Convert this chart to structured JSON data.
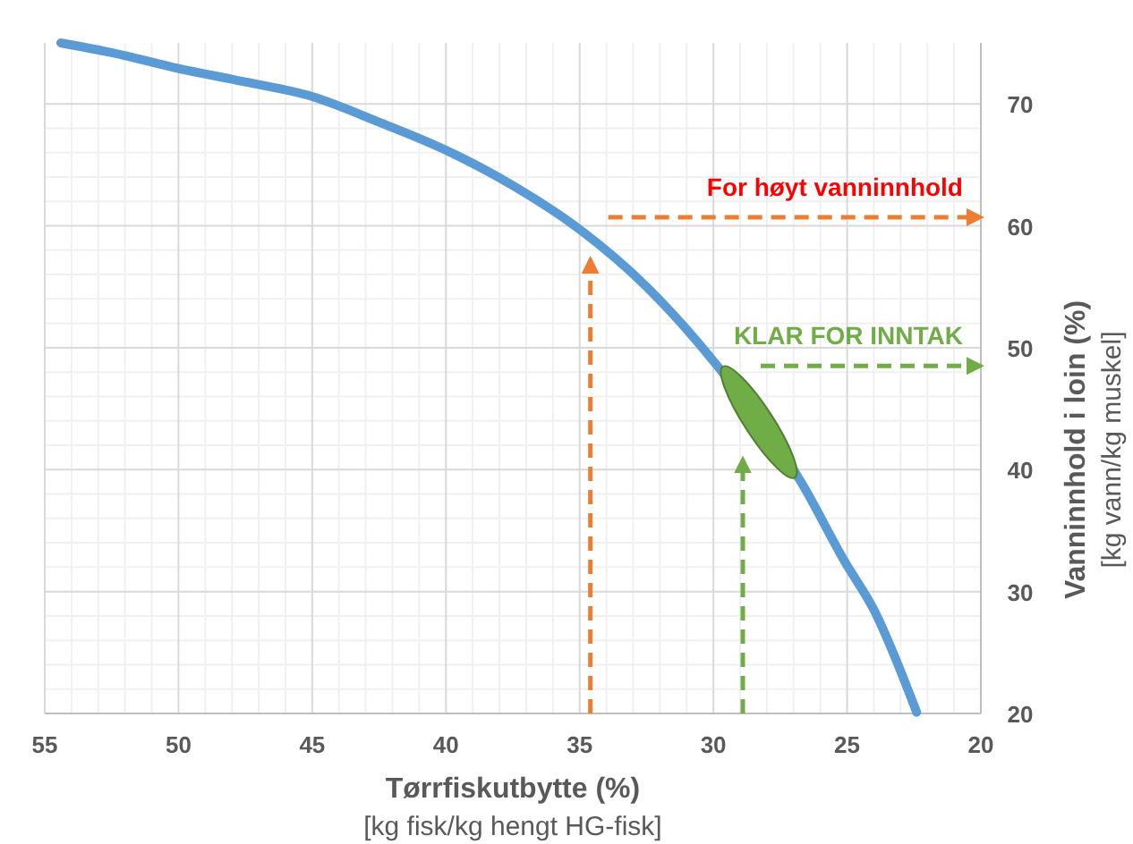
{
  "chart_data": {
    "type": "line",
    "xlabel": "Tørrfiskutbytte (%)\n[kg fisk/kg hengt HG-fisk]",
    "ylabel": "Vanninnhold i loin (%)\n[kg vann/kg muskel]",
    "x": [
      54.4,
      52.5,
      50,
      47.5,
      45,
      42.5,
      40,
      37.5,
      35,
      32.5,
      30,
      26.7,
      25.1,
      24,
      22.4
    ],
    "series": [
      {
        "color": "#5b9bd5",
        "values": [
          75,
          74.2,
          72.9,
          71.8,
          70.6,
          68.5,
          66.2,
          63.3,
          59.7,
          55,
          48.9,
          38.9,
          32.5,
          28.5,
          20.1
        ]
      }
    ],
    "xlim": [
      55,
      20
    ],
    "ylim": [
      20,
      75
    ],
    "xticks": [
      55,
      50,
      45,
      40,
      35,
      30,
      25,
      20
    ],
    "yticks": [
      20,
      30,
      40,
      50,
      60,
      70
    ],
    "grid": true,
    "marker": "none",
    "line_style": "solid",
    "ref_lines": [
      {
        "axis": "y",
        "value": 60.7,
        "label": "For høyt vanninnhold",
        "color": "#ed7d31",
        "line_style": "dashed"
      },
      {
        "axis": "x",
        "value": 34.6,
        "color": "#ed7d31",
        "line_style": "dashed"
      },
      {
        "axis": "y",
        "value": 48.5,
        "label": "KLAR FOR INNTAK",
        "color": "#70ad47",
        "line_style": "dashed"
      },
      {
        "axis": "x",
        "value": 28.9,
        "color": "#70ad47",
        "line_style": "dashed"
      }
    ]
  }
}
